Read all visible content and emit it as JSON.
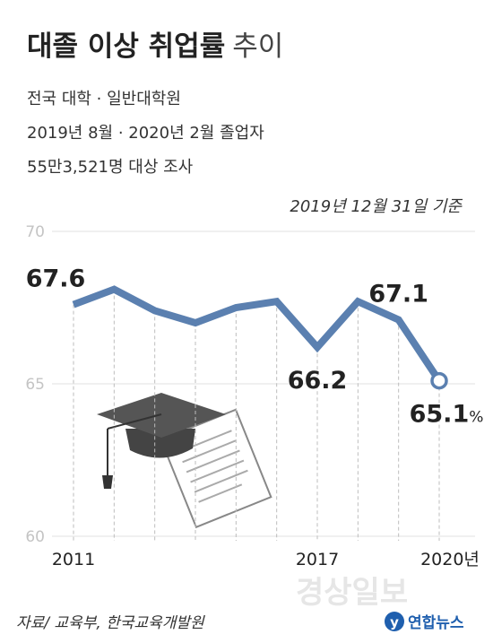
{
  "chart_data": {
    "type": "line",
    "title": "대졸 이상 취업률",
    "title_suffix": "추이",
    "subtitle_lines": [
      "전국 대학 · 일반대학원",
      "2019년 8월 · 2020년 2월 졸업자",
      "55만3,521명 대상 조사"
    ],
    "note": "2019년 12월 31일 기준",
    "categories": [
      "2011",
      null,
      null,
      null,
      null,
      null,
      "2017",
      null,
      null,
      "2020년"
    ],
    "values": [
      67.6,
      68.1,
      67.4,
      67.0,
      67.5,
      67.7,
      66.2,
      67.7,
      67.1,
      65.1
    ],
    "value_labels": [
      "67.6",
      null,
      null,
      null,
      null,
      null,
      "66.2",
      null,
      "67.1",
      "65.1%"
    ],
    "color": "#5b80b0",
    "ylim": [
      60,
      70
    ],
    "yticks": [
      60,
      65,
      70
    ],
    "grid": true,
    "source": "자료/ 교육부, 한국교육개발원",
    "logo": "연합뉴스",
    "watermark": "경상일보"
  }
}
